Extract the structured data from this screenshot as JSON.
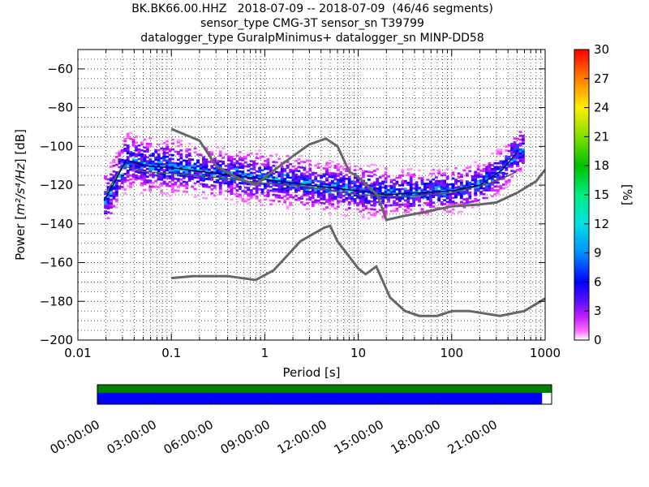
{
  "chart_data": {
    "type": "heatmap",
    "title_lines": [
      "BK.BK66.00.HHZ   2018-07-09 -- 2018-07-09  (46/46 segments)",
      "sensor_type CMG-3T sensor_sn T39799",
      "datalogger_type GuralpMinimus+ datalogger_sn MINP-DD58"
    ],
    "xlabel": "Period [s]",
    "ylabel_prefix": "Power [",
    "ylabel_units": "m²/s⁴/Hz",
    "ylabel_suffix": "] [dB]",
    "x_scale": "log",
    "xlim": [
      0.01,
      1000
    ],
    "ylim": [
      -200,
      -50
    ],
    "x_ticks": [
      0.01,
      0.1,
      1,
      10,
      100,
      1000
    ],
    "x_tick_labels": [
      "0.01",
      "0.1",
      "1",
      "10",
      "100",
      "1000"
    ],
    "y_ticks": [
      -200,
      -180,
      -160,
      -140,
      -120,
      -100,
      -80,
      -60
    ],
    "y_tick_labels": [
      "−200",
      "−180",
      "−160",
      "−140",
      "−120",
      "−100",
      "−80",
      "−60"
    ],
    "grid": "dotted",
    "colorbar": {
      "label": "[%]",
      "range": [
        0,
        30
      ],
      "ticks": [
        0,
        3,
        6,
        9,
        12,
        15,
        18,
        21,
        24,
        27,
        30
      ],
      "tick_labels": [
        "0",
        "3",
        "6",
        "9",
        "12",
        "15",
        "18",
        "21",
        "24",
        "27",
        "30"
      ],
      "colormap": "pqlx"
    },
    "noise_models": [
      {
        "model": "high",
        "color": "#666666",
        "points": [
          [
            0.1,
            -91
          ],
          [
            0.2,
            -97
          ],
          [
            0.3,
            -110
          ],
          [
            0.5,
            -116
          ],
          [
            0.8,
            -120
          ],
          [
            1.2,
            -113
          ],
          [
            2,
            -105
          ],
          [
            3,
            -99
          ],
          [
            4.5,
            -96
          ],
          [
            6,
            -100
          ],
          [
            7,
            -107
          ],
          [
            8,
            -113
          ],
          [
            10,
            -116
          ],
          [
            13,
            -121
          ],
          [
            16,
            -125
          ],
          [
            20,
            -138
          ],
          [
            30,
            -136
          ],
          [
            50,
            -134
          ],
          [
            100,
            -131
          ],
          [
            200,
            -130
          ],
          [
            300,
            -129
          ],
          [
            500,
            -124
          ],
          [
            800,
            -118
          ],
          [
            1000,
            -112
          ]
        ]
      },
      {
        "model": "low",
        "color": "#666666",
        "points": [
          [
            0.1,
            -168
          ],
          [
            0.17,
            -167
          ],
          [
            0.4,
            -167
          ],
          [
            0.8,
            -169
          ],
          [
            1.24,
            -164
          ],
          [
            2.4,
            -149
          ],
          [
            4.3,
            -142
          ],
          [
            5,
            -141
          ],
          [
            6,
            -149
          ],
          [
            10,
            -163
          ],
          [
            12,
            -166
          ],
          [
            15.6,
            -162
          ],
          [
            21.9,
            -178
          ],
          [
            31.6,
            -185
          ],
          [
            45,
            -187.5
          ],
          [
            70,
            -187.5
          ],
          [
            101,
            -185
          ],
          [
            154,
            -185
          ],
          [
            328,
            -187.5
          ],
          [
            600,
            -185
          ],
          [
            1000,
            -178.5
          ]
        ]
      }
    ],
    "mode_line": {
      "color": "#000066",
      "points": [
        [
          0.019,
          -128
        ],
        [
          0.025,
          -118
        ],
        [
          0.033,
          -107
        ],
        [
          0.05,
          -110
        ],
        [
          0.1,
          -111
        ],
        [
          0.3,
          -114
        ],
        [
          1,
          -117
        ],
        [
          3,
          -120
        ],
        [
          10,
          -123
        ],
        [
          20,
          -125
        ],
        [
          40,
          -124
        ],
        [
          100,
          -123
        ],
        [
          200,
          -120
        ],
        [
          350,
          -112
        ],
        [
          500,
          -103
        ]
      ]
    },
    "mean_line": {
      "color": "#555555",
      "points": [
        [
          0.02,
          -124
        ],
        [
          0.03,
          -110
        ],
        [
          0.05,
          -113
        ],
        [
          0.1,
          -114
        ],
        [
          0.3,
          -116
        ],
        [
          1,
          -119
        ],
        [
          3,
          -121
        ],
        [
          10,
          -125
        ],
        [
          30,
          -126
        ],
        [
          100,
          -124
        ],
        [
          300,
          -118
        ],
        [
          500,
          -113
        ]
      ]
    },
    "time_axis": {
      "tick_labels": [
        "00:00:00",
        "03:00:00",
        "06:00:00",
        "09:00:00",
        "12:00:00",
        "15:00:00",
        "18:00:00",
        "21:00:00"
      ],
      "data_coverage_fraction": 1.0,
      "psd_coverage_fraction": 0.979,
      "data_color": "#008000",
      "psd_color": "#0000ff"
    }
  }
}
